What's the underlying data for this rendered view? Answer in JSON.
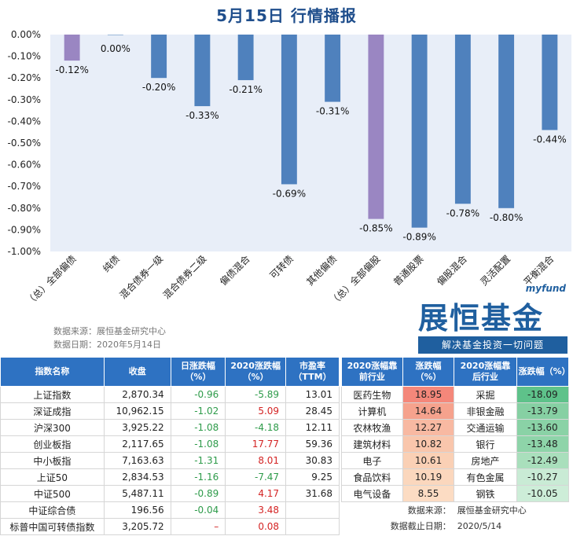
{
  "title": "5月15日  行情播报",
  "chart_data": {
    "type": "bar",
    "categories": [
      "（总）全部偏债",
      "纯债",
      "混合债券一级",
      "混合债券二级",
      "偏债混合",
      "可转债",
      "其他偏债",
      "（总）全部偏股",
      "普通股票",
      "偏股混合",
      "灵活配置",
      "平衡混合"
    ],
    "values": [
      -0.12,
      0.0,
      -0.2,
      -0.33,
      -0.21,
      -0.69,
      -0.31,
      -0.85,
      -0.89,
      -0.78,
      -0.8,
      -0.44
    ],
    "data_labels": [
      "-0.12%",
      "0.00%",
      "-0.20%",
      "-0.33%",
      "-0.21%",
      "-0.69%",
      "-0.31%",
      "-0.85%",
      "-0.89%",
      "-0.78%",
      "-0.80%",
      "-0.44%"
    ],
    "highlight": [
      true,
      false,
      false,
      false,
      false,
      false,
      false,
      true,
      false,
      false,
      false,
      false
    ],
    "y_ticks": [
      "0.00%",
      "-0.10%",
      "-0.20%",
      "-0.30%",
      "-0.40%",
      "-0.50%",
      "-0.60%",
      "-0.70%",
      "-0.80%",
      "-0.90%",
      "-1.00%"
    ],
    "ylim": [
      -1.0,
      0.0
    ],
    "colors": {
      "bar": "#4f81bd",
      "highlight": "#9a86c2",
      "plot_bg": "#e8eef8"
    }
  },
  "source": {
    "line1": "数据来源：展恒基金研究中心",
    "line2": "数据日期：2020年5月14日"
  },
  "logo": {
    "tag": "myfund",
    "brand": "展恒基金",
    "slogan": "解决基金投资一切问题"
  },
  "left_table": {
    "headers": [
      "指数名称",
      "收盘",
      "日涨跌幅（%）",
      "2020涨跌幅（%）",
      "市盈率（TTM）"
    ],
    "rows": [
      [
        "上证指数",
        "2,870.34",
        "-0.96",
        "-5.89",
        "13.01"
      ],
      [
        "深证成指",
        "10,962.15",
        "-1.02",
        "5.09",
        "28.45"
      ],
      [
        "沪深300",
        "3,925.22",
        "-1.08",
        "-4.18",
        "12.11"
      ],
      [
        "创业板指",
        "2,117.65",
        "-1.08",
        "17.77",
        "59.36"
      ],
      [
        "中小板指",
        "7,163.63",
        "-1.31",
        "8.01",
        "30.83"
      ],
      [
        "上证50",
        "2,834.53",
        "-1.16",
        "-7.47",
        "9.25"
      ],
      [
        "中证500",
        "5,487.11",
        "-0.89",
        "4.17",
        "31.68"
      ],
      [
        "中证综合债",
        "196.56",
        "-0.04",
        "3.48",
        ""
      ],
      [
        "标普中国可转债指数",
        "3,205.72",
        "–",
        "0.08",
        ""
      ]
    ]
  },
  "right_table": {
    "headers": [
      "2020涨幅靠前行业",
      "涨跌幅（%）",
      "2020涨幅靠后行业",
      "涨跌幅（%）"
    ],
    "rows": [
      [
        "医药生物",
        "18.95",
        "采掘",
        "-18.09"
      ],
      [
        "计算机",
        "14.64",
        "非银金融",
        "-13.79"
      ],
      [
        "农林牧渔",
        "12.27",
        "交通运输",
        "-13.60"
      ],
      [
        "建筑材料",
        "10.82",
        "银行",
        "-13.48"
      ],
      [
        "电子",
        "10.61",
        "房地产",
        "-12.49"
      ],
      [
        "食品饮料",
        "10.19",
        "有色金属",
        "-10.27"
      ],
      [
        "电气设备",
        "8.55",
        "钢铁",
        "-10.05"
      ]
    ],
    "up_colors": [
      "#f4877a",
      "#f6a28d",
      "#f8b9a2",
      "#f9c6ac",
      "#fad0b5",
      "#fbd7bd",
      "#fcdcc3"
    ],
    "down_colors": [
      "#5ec28a",
      "#86d0a3",
      "#8ad2a6",
      "#8ed4a9",
      "#a9dfbc",
      "#c9ebd5",
      "#cdedd8"
    ],
    "footer_label1": "数据来源：",
    "footer_value1": "展恒基金研究中心",
    "footer_label2": "数据截止日期：",
    "footer_value2": "2020/5/14"
  }
}
